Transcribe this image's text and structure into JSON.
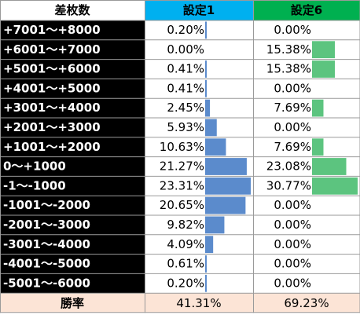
{
  "table": {
    "header_label": "差枚数",
    "footer_label": "勝率"
  },
  "colors": {
    "setting1_header": "#00B0F0",
    "setting6_header": "#00B050",
    "setting1_bar": "#5B8BCC",
    "setting6_bar": "#5CC47F",
    "label_background": "#000000",
    "footer_background": "#FCE4D6",
    "grid": "#9A9A9A"
  },
  "chart_data": {
    "type": "table",
    "series": [
      {
        "name": "設定1",
        "values": [
          0.2,
          0.0,
          0.41,
          0.41,
          2.45,
          5.93,
          10.63,
          21.27,
          23.31,
          20.65,
          9.82,
          4.09,
          0.61,
          0.2
        ],
        "labels": [
          "0.20%",
          "0.00%",
          "0.41%",
          "0.41%",
          "2.45%",
          "5.93%",
          "10.63%",
          "21.27%",
          "23.31%",
          "20.65%",
          "9.82%",
          "4.09%",
          "0.61%",
          "0.20%"
        ],
        "win_rate": "41.31%"
      },
      {
        "name": "設定6",
        "values": [
          0.0,
          15.38,
          15.38,
          0.0,
          7.69,
          0.0,
          7.69,
          23.08,
          30.77,
          0.0,
          0.0,
          0.0,
          0.0,
          0.0
        ],
        "labels": [
          "0.00%",
          "15.38%",
          "15.38%",
          "0.00%",
          "7.69%",
          "0.00%",
          "7.69%",
          "23.08%",
          "30.77%",
          "0.00%",
          "0.00%",
          "0.00%",
          "0.00%",
          "0.00%"
        ],
        "win_rate": "69.23%"
      }
    ],
    "categories": [
      "+7001～+8000",
      "+6001～+7000",
      "+5001～+6000",
      "+4001～+5000",
      "+3001～+4000",
      "+2001～+3000",
      "+1001～+2000",
      "0～+1000",
      "-1～-1000",
      "-1001～-2000",
      "-2001～-3000",
      "-3001～-4000",
      "-4001～-5000",
      "-5001～-6000"
    ]
  }
}
